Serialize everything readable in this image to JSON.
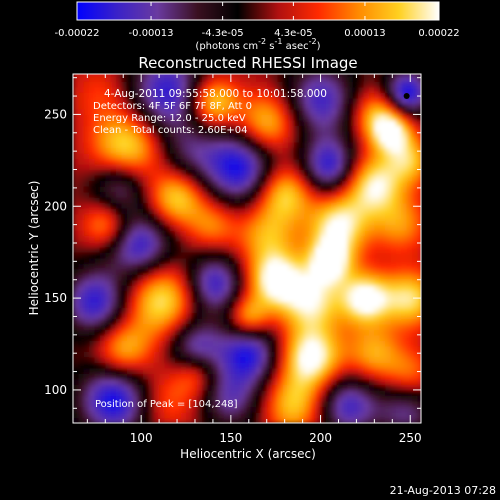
{
  "colorbar": {
    "tick_labels": [
      "-0.00022",
      "-0.00013",
      "-4.3e-05",
      "4.3e-05",
      "0.00013",
      "0.00022"
    ],
    "tick_values": [
      -0.00022,
      -0.00013,
      -4.3e-05,
      4.3e-05,
      0.00013,
      0.00022
    ],
    "range": [
      -0.00022,
      0.00022
    ],
    "units_text": "(photons cm",
    "units_sup1": "-2",
    "units_s": " s",
    "units_sup2": "-1",
    "units_asec": " asec",
    "units_sup3": "-2",
    "units_close": ")",
    "colors": [
      "#0000ff",
      "#3a22c8",
      "#6a3aa0",
      "#3a1020",
      "#000000",
      "#b01010",
      "#ff2a00",
      "#ff8a00",
      "#ffd020",
      "#ffffff"
    ]
  },
  "chart_data": {
    "type": "heatmap",
    "title": "Reconstructed RHESSI Image",
    "xlabel": "Heliocentric X (arcsec)",
    "ylabel": "Heliocentric Y (arcsec)",
    "xlim": [
      62,
      256
    ],
    "ylim": [
      82,
      272
    ],
    "xticks": [
      100,
      150,
      200,
      250
    ],
    "yticks": [
      100,
      150,
      200,
      250
    ],
    "peak_position": [
      104,
      248
    ],
    "annotations": [
      "4-Aug-2011 09:55:58.000 to 10:01:58.000",
      "Detectors: 4F 5F 6F 7F 8F, Att 0",
      "Energy Range: 12.0 - 25.0 keV",
      "Clean - Total counts: 2.60E+04",
      "Position of Peak = [104,248]"
    ],
    "peak_marker": [
      248,
      260
    ]
  },
  "footer": {
    "timestamp": "21-Aug-2013 07:28"
  }
}
